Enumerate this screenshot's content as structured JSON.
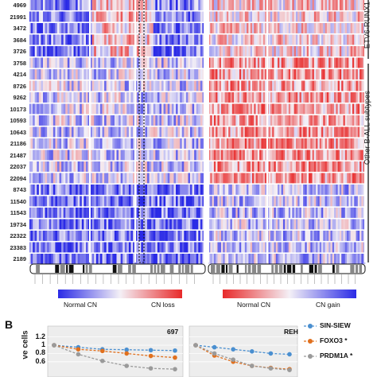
{
  "sample_ids": [
    "4969",
    "21991",
    "3472",
    "3684",
    "3726",
    "3758",
    "4214",
    "8726",
    "9262",
    "10173",
    "10593",
    "10643",
    "21186",
    "21487",
    "22037",
    "22094",
    "8743",
    "11540",
    "11543",
    "19734",
    "22322",
    "23383",
    "2189"
  ],
  "groups": [
    {
      "label": "ETV6-RUNX1"
    },
    {
      "label": "Other B-ALL subtypes"
    }
  ],
  "heatmap_left": {
    "legend_low": "Normal CN",
    "legend_high": "CN loss",
    "colors": {
      "normal": "#2a2ae6",
      "mid": "#f4f0f6",
      "alt": "#e82a2a"
    }
  },
  "heatmap_right": {
    "legend_low": "Normal CN",
    "legend_high": "CN gain",
    "colors": {
      "normal": "#e82a2a",
      "mid": "#f4f0f6",
      "alt": "#2a2ae6"
    }
  },
  "panel_b": {
    "letter": "B",
    "y_axis_label": "ve cells",
    "y_ticks": [
      "1.2",
      "1",
      "0.8",
      "0.6"
    ],
    "chart_titles": [
      "697",
      "REH"
    ],
    "legend": [
      {
        "name": "SIN-SIEW",
        "color": "#4a8fd0",
        "asterisk": ""
      },
      {
        "name": "FOXO3",
        "color": "#e0701e",
        "asterisk": "*"
      },
      {
        "name": "PRDM1A",
        "color": "#9a9a9a",
        "asterisk": "*"
      }
    ]
  }
}
